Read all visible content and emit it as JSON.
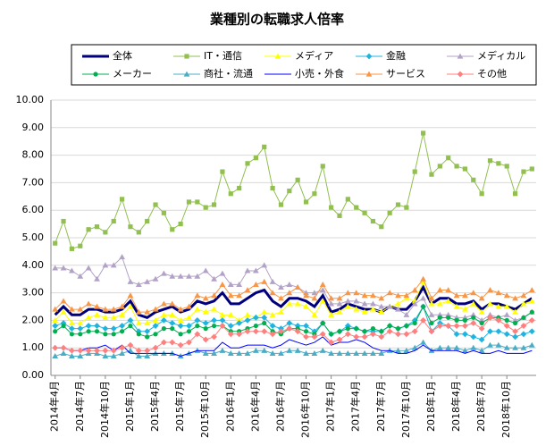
{
  "chart_data": {
    "type": "line",
    "title": "業種別の転職求人倍率",
    "categories": [
      "2014年4月",
      null,
      null,
      "2014年7月",
      null,
      null,
      "2014年10月",
      null,
      null,
      "2015年1月",
      null,
      null,
      "2015年4月",
      null,
      null,
      "2015年7月",
      null,
      null,
      "2015年10月",
      null,
      null,
      "2016年1月",
      null,
      null,
      "2016年4月",
      null,
      null,
      "2016年7月",
      null,
      null,
      "2016年10月",
      null,
      null,
      "2017年1月",
      null,
      null,
      "2017年4月",
      null,
      null,
      "2017年7月",
      null,
      null,
      "2017年10月",
      null,
      null,
      "2018年1月",
      null,
      null,
      "2018年4月",
      null,
      null,
      "2018年7月",
      null,
      null,
      "2018年10月",
      null,
      null,
      null
    ],
    "ylim": [
      0,
      10
    ],
    "yticks": [
      {
        "value": 0,
        "label": "0.00"
      },
      {
        "value": 1,
        "label": "1.00"
      },
      {
        "value": 2,
        "label": "2.00"
      },
      {
        "value": 3,
        "label": "3.00"
      },
      {
        "value": 4,
        "label": "4.00"
      },
      {
        "value": 5,
        "label": "5.00"
      },
      {
        "value": 6,
        "label": "6.00"
      },
      {
        "value": 7,
        "label": "7.00"
      },
      {
        "value": 8,
        "label": "8.00"
      },
      {
        "value": 9,
        "label": "9.00"
      },
      {
        "value": 10,
        "label": "10.00"
      }
    ],
    "grid": true,
    "series": [
      {
        "name": "全体",
        "color": "#00007f",
        "marker": "none",
        "width": 3,
        "values": [
          2.2,
          2.5,
          2.2,
          2.2,
          2.4,
          2.4,
          2.3,
          2.3,
          2.4,
          2.7,
          2.2,
          2.1,
          2.3,
          2.4,
          2.5,
          2.3,
          2.4,
          2.7,
          2.6,
          2.7,
          3.0,
          2.6,
          2.6,
          2.8,
          3.0,
          3.1,
          2.7,
          2.5,
          2.8,
          2.8,
          2.7,
          2.5,
          2.9,
          2.3,
          2.4,
          2.6,
          2.5,
          2.4,
          2.4,
          2.3,
          2.5,
          2.4,
          2.4,
          2.7,
          3.2,
          2.6,
          2.8,
          2.8,
          2.6,
          2.6,
          2.7,
          2.4,
          2.6,
          2.6,
          2.5,
          2.4,
          2.6,
          2.8
        ]
      },
      {
        "name": "IT・通信",
        "color": "#92c050",
        "marker": "square",
        "width": 1,
        "values": [
          4.8,
          5.6,
          4.6,
          4.7,
          5.3,
          5.4,
          5.2,
          5.6,
          6.4,
          5.4,
          5.2,
          5.6,
          6.2,
          5.9,
          5.3,
          5.5,
          6.3,
          6.3,
          6.1,
          6.2,
          7.4,
          6.6,
          6.8,
          7.7,
          7.9,
          8.3,
          6.8,
          6.2,
          6.7,
          7.1,
          6.3,
          6.6,
          7.6,
          6.1,
          5.8,
          6.4,
          6.1,
          5.9,
          5.6,
          5.4,
          5.9,
          6.2,
          6.1,
          7.4,
          8.8,
          7.3,
          7.6,
          7.9,
          7.6,
          7.5,
          7.1,
          6.6,
          7.8,
          7.7,
          7.6,
          6.6,
          7.4,
          7.5
        ]
      },
      {
        "name": "メディア",
        "color": "#ffff00",
        "marker": "triangle",
        "width": 1,
        "values": [
          2.0,
          2.3,
          1.9,
          1.9,
          2.1,
          2.2,
          2.1,
          2.1,
          2.2,
          2.5,
          1.9,
          1.9,
          2.0,
          2.2,
          2.2,
          2.0,
          2.1,
          2.4,
          2.3,
          2.4,
          2.2,
          2.2,
          2.0,
          2.2,
          2.1,
          2.3,
          2.2,
          2.3,
          2.6,
          2.6,
          2.5,
          2.2,
          2.7,
          2.2,
          2.3,
          2.5,
          2.4,
          2.3,
          2.4,
          2.3,
          2.5,
          2.6,
          2.8,
          2.7,
          3.4,
          2.6,
          2.6,
          2.7,
          2.5,
          2.4,
          2.6,
          2.3,
          2.6,
          2.5,
          2.5,
          2.3,
          2.6,
          2.7
        ]
      },
      {
        "name": "金融",
        "color": "#1fb4e0",
        "marker": "diamond",
        "width": 1,
        "values": [
          1.8,
          1.9,
          1.7,
          1.7,
          1.8,
          1.8,
          1.7,
          1.7,
          1.8,
          2.0,
          1.6,
          1.6,
          1.8,
          2.0,
          1.9,
          1.8,
          1.8,
          2.0,
          1.9,
          2.0,
          2.0,
          1.8,
          1.9,
          2.0,
          2.1,
          2.1,
          1.8,
          1.7,
          1.9,
          1.8,
          1.8,
          1.6,
          1.9,
          1.5,
          1.6,
          1.8,
          1.7,
          1.6,
          1.6,
          1.6,
          1.8,
          1.7,
          1.8,
          2.0,
          2.5,
          1.6,
          1.9,
          1.8,
          1.5,
          1.5,
          1.4,
          1.3,
          1.6,
          1.6,
          1.5,
          1.4,
          1.5,
          1.6
        ]
      },
      {
        "name": "メディカル",
        "color": "#b3a2c7",
        "marker": "triangle",
        "width": 1,
        "values": [
          3.9,
          3.9,
          3.8,
          3.6,
          3.9,
          3.5,
          4.0,
          4.0,
          4.3,
          3.4,
          3.3,
          3.4,
          3.5,
          3.7,
          3.6,
          3.6,
          3.6,
          3.6,
          3.8,
          3.5,
          3.7,
          3.3,
          3.3,
          3.8,
          3.8,
          4.0,
          3.4,
          3.2,
          3.3,
          3.2,
          3.0,
          3.0,
          3.1,
          2.6,
          2.6,
          2.7,
          2.7,
          2.6,
          2.6,
          2.5,
          2.5,
          2.4,
          2.2,
          2.6,
          2.8,
          2.2,
          2.2,
          2.2,
          2.1,
          2.1,
          2.2,
          2.0,
          2.2,
          2.1,
          2.2,
          2.0,
          2.1,
          2.3
        ]
      },
      {
        "name": "メーカー",
        "color": "#00b050",
        "marker": "circle",
        "width": 1,
        "values": [
          1.6,
          1.8,
          1.5,
          1.5,
          1.6,
          1.6,
          1.5,
          1.5,
          1.6,
          1.8,
          1.5,
          1.4,
          1.5,
          1.7,
          1.7,
          1.5,
          1.6,
          1.8,
          1.7,
          1.8,
          1.8,
          1.6,
          1.6,
          1.7,
          1.8,
          1.9,
          1.6,
          1.5,
          1.7,
          1.7,
          1.6,
          1.5,
          1.9,
          1.5,
          1.6,
          1.7,
          1.7,
          1.6,
          1.7,
          1.6,
          1.8,
          1.7,
          1.8,
          1.9,
          2.5,
          1.9,
          2.1,
          2.1,
          2.0,
          2.0,
          2.1,
          1.9,
          2.1,
          2.1,
          2.0,
          1.9,
          2.1,
          2.3
        ]
      },
      {
        "name": "商社・流通",
        "color": "#4bacc6",
        "marker": "triangle",
        "width": 1,
        "values": [
          0.7,
          0.8,
          0.7,
          0.7,
          0.8,
          0.8,
          0.7,
          0.7,
          0.8,
          0.9,
          0.7,
          0.7,
          0.8,
          0.8,
          0.8,
          0.7,
          0.8,
          0.9,
          0.8,
          0.8,
          0.9,
          0.8,
          0.8,
          0.8,
          0.9,
          0.9,
          0.8,
          0.8,
          0.9,
          0.9,
          0.8,
          0.8,
          0.9,
          0.8,
          0.8,
          0.8,
          0.8,
          0.8,
          0.8,
          0.8,
          0.9,
          0.9,
          0.9,
          1.0,
          1.2,
          0.9,
          1.0,
          1.0,
          1.0,
          0.9,
          1.0,
          0.9,
          1.1,
          1.1,
          1.0,
          1.0,
          1.0,
          1.1
        ]
      },
      {
        "name": "小売・外食",
        "color": "#0000ff",
        "marker": "none",
        "width": 1,
        "values": [
          1.0,
          1.0,
          0.9,
          0.9,
          1.0,
          1.0,
          1.1,
          0.9,
          1.1,
          0.8,
          0.8,
          0.8,
          0.8,
          0.8,
          0.8,
          0.7,
          0.8,
          0.9,
          0.9,
          0.9,
          1.2,
          1.0,
          1.0,
          1.1,
          1.1,
          1.1,
          1.0,
          1.1,
          1.3,
          1.2,
          1.1,
          1.2,
          1.4,
          1.1,
          1.2,
          1.2,
          1.3,
          1.2,
          1.0,
          0.9,
          0.9,
          0.8,
          0.8,
          0.9,
          1.1,
          0.9,
          0.9,
          0.9,
          0.9,
          0.8,
          0.9,
          0.8,
          0.8,
          0.9,
          0.8,
          0.8,
          0.8,
          0.9
        ]
      },
      {
        "name": "サービス",
        "color": "#f79646",
        "marker": "triangle",
        "width": 1,
        "values": [
          2.4,
          2.7,
          2.4,
          2.4,
          2.6,
          2.5,
          2.4,
          2.4,
          2.5,
          2.9,
          2.3,
          2.3,
          2.4,
          2.6,
          2.6,
          2.4,
          2.5,
          2.9,
          2.8,
          2.9,
          3.3,
          2.9,
          2.9,
          3.1,
          3.3,
          3.4,
          3.0,
          2.8,
          3.0,
          3.2,
          2.9,
          2.8,
          3.3,
          2.8,
          2.8,
          3.0,
          3.0,
          2.9,
          2.9,
          2.8,
          3.0,
          2.9,
          2.9,
          3.1,
          3.5,
          2.8,
          3.1,
          3.1,
          2.9,
          2.9,
          3.0,
          2.8,
          3.1,
          3.0,
          2.9,
          2.8,
          2.9,
          3.1
        ]
      },
      {
        "name": "その他",
        "color": "#ff7f7f",
        "marker": "diamond",
        "width": 1,
        "values": [
          1.0,
          1.0,
          0.9,
          0.9,
          0.9,
          0.9,
          0.9,
          0.9,
          1.0,
          1.1,
          0.9,
          0.9,
          1.0,
          1.2,
          1.2,
          1.1,
          1.2,
          1.5,
          1.3,
          1.4,
          1.8,
          1.5,
          1.5,
          1.6,
          1.6,
          1.6,
          1.5,
          1.6,
          1.7,
          1.6,
          1.4,
          1.4,
          1.5,
          1.2,
          1.3,
          1.5,
          1.4,
          1.4,
          1.5,
          1.4,
          1.6,
          1.5,
          1.5,
          1.6,
          2.0,
          1.6,
          1.8,
          1.8,
          1.8,
          1.8,
          1.9,
          1.7,
          2.1,
          2.0,
          1.8,
          1.6,
          1.8,
          2.0
        ]
      }
    ]
  }
}
